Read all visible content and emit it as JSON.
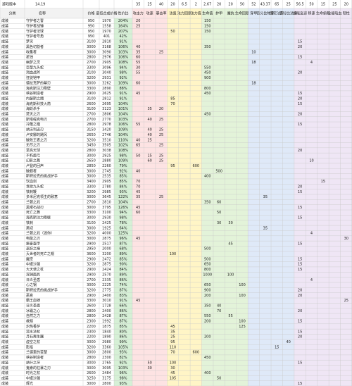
{
  "sheet": {
    "version_label": "游戏版本",
    "version": "14.19",
    "stat_gold": [
      "35",
      "25",
      "40",
      "20",
      "6.5",
      "2",
      "2.67",
      "20",
      "20",
      "50",
      "52",
      "43.37",
      "65",
      "25",
      "56.5",
      "50",
      "15",
      "25",
      "20"
    ],
    "headers": [
      "分类",
      "名称",
      "价格",
      "最低合成价格",
      "性价比",
      "攻击力",
      "攻速",
      "暴击率",
      "法强",
      "法力回复",
      "法力值",
      "生命值",
      "护甲",
      "魔抗",
      "生命回复",
      "穿甲",
      "百分比物穿",
      "固定法穿",
      "百分比法穿",
      "技能急速",
      "移速",
      "生命偷取",
      "全能吸血",
      "韧性"
    ],
    "rows": [
      [
        "成装",
        "守护者之誓",
        950,
        1970,
        "204%",
        20,
        null,
        null,
        null,
        null,
        null,
        150
      ],
      [
        "成装",
        "守护者战锤",
        950,
        1558,
        "164%",
        25,
        null,
        null,
        null,
        null,
        null,
        150
      ],
      [
        "成装",
        "守护者法球",
        950,
        1970,
        "207%",
        null,
        null,
        null,
        50,
        null,
        null,
        150
      ],
      [
        "成装",
        "守护者号角",
        950,
        401,
        "42%"
      ],
      [
        "成装",
        "梦灵",
        3100,
        2810,
        "91%",
        null,
        null,
        null,
        null,
        null,
        null,
        null,
        null,
        null,
        null,
        null,
        null,
        null,
        null,
        15
      ],
      [
        "成装",
        "黑色切割者",
        3000,
        3168,
        "106%",
        40,
        null,
        null,
        null,
        null,
        null,
        350,
        null,
        null,
        null,
        null,
        null,
        null,
        null,
        20
      ],
      [
        "成装",
        "收集者",
        3000,
        3090,
        "103%",
        35,
        null,
        25,
        null,
        null,
        null,
        null,
        null,
        null,
        null,
        10
      ],
      [
        "成装",
        "星蚀",
        2800,
        2976,
        "106%",
        60,
        null,
        null,
        null,
        null,
        null,
        null,
        null,
        null,
        null,
        null,
        null,
        null,
        null,
        15
      ],
      [
        "成装",
        "幽梦之灵",
        2700,
        2905,
        "108%",
        55,
        null,
        null,
        null,
        null,
        null,
        null,
        null,
        null,
        null,
        18,
        null,
        null,
        null,
        null,
        4
      ],
      [
        "成装",
        "巨型九头蛇",
        3300,
        3096,
        "94%",
        30,
        null,
        null,
        null,
        null,
        null,
        550
      ],
      [
        "成装",
        "渴血战斧",
        3100,
        3040,
        "98%",
        55,
        null,
        null,
        null,
        null,
        null,
        450,
        null,
        null,
        null,
        null,
        null,
        null,
        null,
        20
      ],
      [
        "成装",
        "狂徒铠甲",
        3200,
        2931,
        "92%",
        null,
        null,
        null,
        null,
        null,
        null,
        900
      ],
      [
        "成装",
        "德拉克萨的幕刃",
        3000,
        3262,
        "109%",
        60,
        null,
        null,
        null,
        null,
        null,
        null,
        null,
        null,
        null,
        18
      ],
      [
        "成装",
        "海克斯注力刚壁",
        3300,
        2890,
        "88%",
        null,
        null,
        null,
        null,
        null,
        null,
        800
      ],
      [
        "成装",
        "峡谷制造者",
        2900,
        2625,
        "91%",
        45,
        null,
        null,
        null,
        null,
        null,
        450,
        null,
        null,
        null,
        null,
        null,
        null,
        null,
        15
      ],
      [
        "成装",
        "内瑟斯之拥",
        3100,
        2812,
        "91%",
        null,
        null,
        null,
        85,
        null,
        null,
        null,
        null,
        null,
        null,
        null,
        null,
        null,
        null,
        20
      ],
      [
        "成装",
        "海克斯科技火箭",
        2600,
        2695,
        "104%",
        null,
        null,
        null,
        70,
        null,
        null,
        null,
        null,
        null,
        null,
        null,
        null,
        null,
        null,
        15
      ],
      [
        "成装",
        "海妖杀手",
        3100,
        3123,
        "101%",
        null,
        35,
        20
      ],
      [
        "成装",
        "焚天之刃",
        2700,
        2806,
        "104%",
        null,
        null,
        null,
        null,
        null,
        null,
        450,
        null,
        null,
        null,
        null,
        null,
        null,
        null,
        20
      ],
      [
        "成装",
        "斯塔缇克电刃",
        2700,
        2770,
        "103%",
        null,
        40,
        25
      ],
      [
        "成装",
        "冷酷之噬",
        2800,
        2978,
        "106%",
        55,
        null,
        null,
        null,
        null,
        null,
        null,
        null,
        null,
        null,
        null,
        null,
        null,
        null,
        15
      ],
      [
        "成装",
        "纳沃利迅刃",
        3150,
        3420,
        "109%",
        null,
        40,
        25
      ],
      [
        "成装",
        "卢安娜的飓风",
        2650,
        2746,
        "104%",
        null,
        40,
        25
      ],
      [
        "成装",
        "破败王者之刃",
        3200,
        3510,
        "110%",
        40,
        25
      ],
      [
        "成装",
        "无尽之刃",
        3450,
        3505,
        "102%",
        65,
        null,
        25
      ],
      [
        "成装",
        "至高天球",
        2800,
        3038,
        "108%",
        null,
        null,
        null,
        null,
        null,
        null,
        null,
        null,
        null,
        null,
        null,
        null,
        null,
        null,
        20
      ],
      [
        "成装",
        "不朽盾弓",
        3000,
        2925,
        "98%",
        50,
        15,
        25
      ],
      [
        "成装",
        "幻影之舞",
        2650,
        2880,
        "109%",
        null,
        60,
        25,
        null,
        null,
        null,
        null,
        null,
        null,
        null,
        null,
        null,
        null,
        null,
        null,
        10
      ],
      [
        "成装",
        "卢登的回声",
        2850,
        2260,
        "79%",
        null,
        null,
        null,
        95,
        null,
        600
      ],
      [
        "成装",
        "破舰者",
        3000,
        2745,
        "92%",
        40,
        null,
        null,
        null,
        null,
        null,
        null,
        500
      ],
      [
        "成装",
        "斯特拉克的挑战护手",
        3000,
        2535,
        "85%",
        null,
        null,
        null,
        null,
        null,
        null,
        400
      ],
      [
        "成装",
        "饮血剑",
        3400,
        2905,
        "85%",
        70,
        null,
        null,
        null,
        null,
        null,
        null,
        null,
        null,
        null,
        null,
        null,
        null,
        null,
        null,
        null,
        15
      ],
      [
        "成装",
        "贪欲九头蛇",
        3300,
        2780,
        "84%",
        70,
        null,
        null,
        null,
        null,
        null,
        null,
        null,
        null,
        null,
        null,
        null,
        null,
        null,
        20
      ],
      [
        "成装",
        "铁刺鞭",
        3200,
        2985,
        "93%",
        45,
        null,
        null,
        null,
        null,
        null,
        null,
        null,
        null,
        null,
        null,
        null,
        null,
        null,
        15
      ],
      [
        "成装",
        "多米尼克领主的致意",
        3000,
        3645,
        "122%",
        35,
        null,
        25,
        null,
        null,
        null,
        null,
        null,
        null,
        null,
        null,
        35
      ],
      [
        "成装",
        "兰顿之兆",
        2700,
        2810,
        "104%",
        null,
        null,
        null,
        null,
        null,
        null,
        350,
        60
      ],
      [
        "成装",
        "黑曜石战刃",
        3000,
        3795,
        "126%",
        45,
        null,
        null,
        null,
        null,
        null,
        null,
        null,
        null,
        null,
        null,
        null,
        null,
        null,
        15
      ],
      [
        "成装",
        "死亡之舞",
        3300,
        3100,
        "94%",
        60,
        null,
        null,
        null,
        null,
        null,
        null,
        50
      ],
      [
        "成装",
        "海克斯注力刚壁",
        3000,
        2930,
        "98%",
        null,
        null,
        null,
        null,
        null,
        null,
        null,
        null,
        null,
        null,
        null,
        null,
        null,
        null,
        15
      ],
      [
        "成装",
        "铁刺",
        3100,
        2425,
        "78%",
        null,
        null,
        null,
        null,
        null,
        null,
        null,
        30,
        30
      ],
      [
        "成装",
        "黑切",
        3000,
        1925,
        "64%",
        null,
        null,
        null,
        null,
        null,
        null,
        null,
        null,
        null,
        null,
        null,
        35
      ],
      [
        "成装",
        "兰顿之兆（迷你）",
        3200,
        4000,
        "125%",
        null,
        null,
        null,
        null,
        null,
        null,
        null,
        null,
        null,
        null,
        null,
        null,
        null,
        null,
        null,
        4
      ],
      [
        "成装",
        "电能之刃",
        3000,
        2875,
        "96%",
        45,
        null,
        null,
        null,
        null,
        null,
        null,
        null,
        null,
        null,
        null,
        null,
        null,
        null,
        null,
        null,
        null,
        null,
        30
      ],
      [
        "成装",
        "振奋盔甲",
        2900,
        2517,
        "87%",
        null,
        null,
        null,
        null,
        null,
        null,
        null,
        null,
        45,
        null,
        null,
        null,
        null,
        null,
        15
      ],
      [
        "成装",
        "巫妖之祸",
        2950,
        2000,
        "68%",
        null,
        null,
        null,
        null,
        null,
        null,
        500
      ],
      [
        "成装",
        "灭世者的死亡之帽",
        3600,
        3200,
        "89%",
        null,
        null,
        null,
        100
      ],
      [
        "成装",
        "魔宗",
        2900,
        2472,
        "85%",
        null,
        null,
        null,
        null,
        null,
        null,
        500,
        null,
        null,
        null,
        null,
        null,
        null,
        null,
        15
      ],
      [
        "成装",
        "中娅沙漏",
        3200,
        2875,
        "90%",
        null,
        null,
        null,
        null,
        null,
        null,
        650,
        null,
        null,
        null,
        null,
        null,
        null,
        null,
        15
      ],
      [
        "成装",
        "大天使之杖",
        2900,
        2424,
        "84%",
        null,
        null,
        null,
        null,
        null,
        null,
        800,
        null,
        null,
        null,
        null,
        null,
        null,
        null,
        15
      ],
      [
        "成装",
        "深渊面具",
        2900,
        2570,
        "89%",
        null,
        null,
        null,
        null,
        null,
        null,
        1000,
        null,
        100
      ],
      [
        "成装",
        "日炎圣盾",
        2700,
        2335,
        "86%",
        null,
        null,
        null,
        null,
        null,
        null,
        null,
        null,
        null,
        null,
        null,
        null,
        null,
        null,
        null,
        4
      ],
      [
        "成装",
        "心之钢",
        3000,
        2225,
        "74%",
        null,
        null,
        null,
        null,
        null,
        null,
        650,
        null,
        null,
        100
      ],
      [
        "成装",
        "斯特拉克的挑战护手",
        3200,
        2775,
        "87%",
        null,
        null,
        null,
        null,
        null,
        null,
        900,
        null,
        null,
        null,
        null,
        null,
        null,
        null,
        20
      ],
      [
        "成装",
        "恶意",
        2900,
        2400,
        "83%",
        null,
        null,
        null,
        null,
        null,
        null,
        200,
        null,
        null,
        100,
        null,
        null,
        null,
        null,
        20
      ],
      [
        "成装",
        "霸王血铠",
        3300,
        3010,
        "91%",
        45,
        null,
        null,
        null,
        null,
        null,
        null,
        null,
        null,
        null,
        null,
        null,
        null,
        null,
        null,
        null,
        null,
        null,
        25
      ],
      [
        "成装",
        "日炎圣盾",
        2600,
        1728,
        "66%",
        null,
        null,
        null,
        null,
        null,
        null,
        350,
        40
      ],
      [
        "成装",
        "冰霜之心",
        2800,
        2400,
        "86%",
        null,
        null,
        null,
        null,
        null,
        null,
        null,
        70,
        null,
        null,
        null,
        null,
        null,
        null,
        20
      ],
      [
        "成装",
        "自然之力",
        2800,
        2428,
        "87%",
        null,
        null,
        null,
        null,
        null,
        null,
        550,
        null,
        55
      ],
      [
        "成装",
        "救赎",
        2300,
        1992,
        "87%",
        null,
        null,
        null,
        null,
        null,
        null,
        200,
        null,
        null,
        100,
        null,
        null,
        null,
        null,
        15
      ],
      [
        "成装",
        "炽热香炉",
        2200,
        1875,
        "85%",
        null,
        null,
        null,
        45,
        null,
        null,
        null,
        null,
        null,
        125
      ],
      [
        "成装",
        "流水法杖",
        2300,
        1840,
        "80%",
        null,
        null,
        null,
        35,
        null,
        null,
        null,
        null,
        null,
        null,
        null,
        null,
        null,
        null,
        15
      ],
      [
        "成装",
        "月石再生器",
        2200,
        1890,
        "86%",
        null,
        null,
        null,
        25,
        null,
        null,
        200,
        null,
        null,
        null,
        null,
        null,
        null,
        null,
        20
      ],
      [
        "成装",
        "虚空之杖",
        3000,
        2980,
        "99%",
        null,
        null,
        null,
        95,
        null,
        null,
        null,
        null,
        null,
        null,
        null,
        null,
        null,
        40
      ],
      [
        "成装",
        "影焰",
        3200,
        3360,
        "105%",
        null,
        null,
        null,
        110,
        null,
        null,
        null,
        null,
        null,
        null,
        null,
        null,
        15
      ],
      [
        "成装",
        "兰德里的苦楚",
        3000,
        2800,
        "93%",
        null,
        null,
        null,
        70,
        null,
        600
      ],
      [
        "成装",
        "峡谷制造者",
        2800,
        2300,
        "82%",
        null,
        null,
        null,
        null,
        null,
        null,
        450
      ],
      [
        "成装",
        "纳什之牙",
        3000,
        2765,
        "92%",
        null,
        50,
        null,
        100,
        null,
        null,
        null,
        null,
        null,
        null,
        null,
        null,
        null,
        null,
        15
      ],
      [
        "成装",
        "鬼索的狂暴之刃",
        3000,
        3095,
        "103%",
        null,
        30,
        null,
        30
      ],
      [
        "成装",
        "时光之杖",
        2600,
        2484,
        "96%",
        null,
        null,
        null,
        45,
        null,
        null,
        400
      ],
      [
        "成装",
        "中娅沙漏",
        3250,
        3175,
        "98%",
        null,
        null,
        null,
        105,
        null,
        null,
        null,
        50
      ],
      [
        "成装",
        "辉光",
        3000,
        2800,
        "93%",
        null,
        null,
        null,
        null,
        null,
        null,
        null,
        null,
        null,
        null,
        null,
        null,
        null,
        null,
        15
      ]
    ]
  }
}
